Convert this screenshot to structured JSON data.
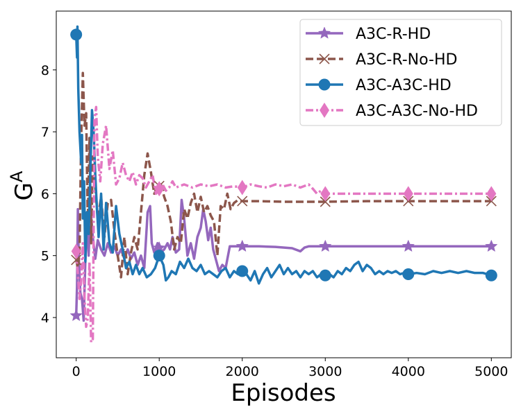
{
  "chart_data": {
    "type": "line",
    "title": "",
    "xlabel": "Episodes",
    "ylabel_base": "G",
    "ylabel_sup": "A",
    "xlim": [
      -240,
      5240
    ],
    "ylim": [
      3.35,
      8.95
    ],
    "xticks": [
      0,
      1000,
      2000,
      3000,
      4000,
      5000
    ],
    "yticks": [
      4,
      5,
      6,
      7,
      8
    ],
    "grid": false,
    "legend_position": "top-right",
    "series": [
      {
        "name": "A3C-R-HD",
        "color": "#9467bd",
        "dash": "solid",
        "marker": "star",
        "marker_x": [
          0,
          1000,
          2000,
          3000,
          4000,
          5000
        ],
        "points": [
          [
            0,
            4.03
          ],
          [
            10,
            4.5
          ],
          [
            20,
            5.75
          ],
          [
            30,
            5.0
          ],
          [
            50,
            4.4
          ],
          [
            70,
            4.3
          ],
          [
            90,
            3.95
          ],
          [
            110,
            4.9
          ],
          [
            130,
            5.6
          ],
          [
            150,
            5.0
          ],
          [
            170,
            5.8
          ],
          [
            200,
            5.3
          ],
          [
            230,
            4.95
          ],
          [
            260,
            5.25
          ],
          [
            300,
            5.1
          ],
          [
            340,
            5.0
          ],
          [
            380,
            5.2
          ],
          [
            420,
            5.05
          ],
          [
            460,
            5.15
          ],
          [
            500,
            5.0
          ],
          [
            540,
            5.1
          ],
          [
            580,
            4.95
          ],
          [
            620,
            5.1
          ],
          [
            660,
            4.95
          ],
          [
            700,
            5.05
          ],
          [
            740,
            4.85
          ],
          [
            780,
            5.0
          ],
          [
            820,
            4.8
          ],
          [
            860,
            5.7
          ],
          [
            890,
            5.8
          ],
          [
            910,
            5.2
          ],
          [
            940,
            5.05
          ],
          [
            980,
            5.2
          ],
          [
            1020,
            5.05
          ],
          [
            1060,
            5.1
          ],
          [
            1100,
            5.2
          ],
          [
            1130,
            5.1
          ],
          [
            1160,
            5.3
          ],
          [
            1200,
            5.05
          ],
          [
            1240,
            5.1
          ],
          [
            1270,
            5.9
          ],
          [
            1300,
            5.6
          ],
          [
            1340,
            5.0
          ],
          [
            1380,
            5.2
          ],
          [
            1420,
            4.95
          ],
          [
            1460,
            5.3
          ],
          [
            1500,
            5.45
          ],
          [
            1530,
            5.75
          ],
          [
            1560,
            5.55
          ],
          [
            1590,
            5.25
          ],
          [
            1620,
            5.45
          ],
          [
            1650,
            5.1
          ],
          [
            1690,
            4.9
          ],
          [
            1720,
            4.75
          ],
          [
            1760,
            4.85
          ],
          [
            1800,
            4.8
          ],
          [
            1850,
            5.15
          ],
          [
            1900,
            5.15
          ],
          [
            2000,
            5.15
          ],
          [
            2200,
            5.15
          ],
          [
            2400,
            5.14
          ],
          [
            2600,
            5.12
          ],
          [
            2700,
            5.07
          ],
          [
            2750,
            5.13
          ],
          [
            2800,
            5.15
          ],
          [
            3000,
            5.15
          ],
          [
            3500,
            5.15
          ],
          [
            4000,
            5.15
          ],
          [
            4500,
            5.15
          ],
          [
            5000,
            5.15
          ]
        ]
      },
      {
        "name": "A3C-R-No-HD",
        "color": "#8c564b",
        "dash": "dashed",
        "marker": "x",
        "marker_x": [
          0,
          1000,
          2000,
          3000,
          4000,
          5000
        ],
        "points": [
          [
            0,
            4.93
          ],
          [
            20,
            4.8
          ],
          [
            40,
            5.05
          ],
          [
            60,
            6.9
          ],
          [
            80,
            7.95
          ],
          [
            100,
            7.1
          ],
          [
            120,
            7.3
          ],
          [
            140,
            5.5
          ],
          [
            160,
            6.9
          ],
          [
            180,
            5.2
          ],
          [
            200,
            6.6
          ],
          [
            230,
            6.1
          ],
          [
            260,
            5.6
          ],
          [
            300,
            5.95
          ],
          [
            340,
            5.3
          ],
          [
            380,
            5.85
          ],
          [
            420,
            5.9
          ],
          [
            460,
            5.4
          ],
          [
            500,
            5.0
          ],
          [
            540,
            4.65
          ],
          [
            580,
            5.3
          ],
          [
            620,
            4.7
          ],
          [
            660,
            5.05
          ],
          [
            700,
            5.3
          ],
          [
            740,
            5.1
          ],
          [
            780,
            5.7
          ],
          [
            820,
            6.3
          ],
          [
            860,
            6.65
          ],
          [
            900,
            6.35
          ],
          [
            940,
            6.0
          ],
          [
            980,
            6.1
          ],
          [
            1020,
            6.15
          ],
          [
            1060,
            5.95
          ],
          [
            1100,
            5.8
          ],
          [
            1140,
            5.55
          ],
          [
            1180,
            5.1
          ],
          [
            1220,
            5.3
          ],
          [
            1260,
            5.2
          ],
          [
            1300,
            5.75
          ],
          [
            1340,
            5.6
          ],
          [
            1380,
            5.85
          ],
          [
            1420,
            6.0
          ],
          [
            1460,
            5.7
          ],
          [
            1500,
            5.95
          ],
          [
            1540,
            5.7
          ],
          [
            1580,
            5.8
          ],
          [
            1620,
            5.65
          ],
          [
            1660,
            5.55
          ],
          [
            1700,
            5.0
          ],
          [
            1740,
            5.8
          ],
          [
            1780,
            5.75
          ],
          [
            1820,
            6.0
          ],
          [
            1860,
            5.75
          ],
          [
            1900,
            5.85
          ],
          [
            1950,
            5.9
          ],
          [
            2000,
            5.88
          ],
          [
            2200,
            5.88
          ],
          [
            2500,
            5.87
          ],
          [
            3000,
            5.87
          ],
          [
            3500,
            5.88
          ],
          [
            4000,
            5.88
          ],
          [
            4500,
            5.88
          ],
          [
            5000,
            5.88
          ]
        ]
      },
      {
        "name": "A3C-A3C-HD",
        "color": "#1f77b4",
        "dash": "solid",
        "marker": "circle",
        "marker_x": [
          0,
          1000,
          2000,
          3000,
          4000,
          5000
        ],
        "points": [
          [
            0,
            8.57
          ],
          [
            10,
            8.2
          ],
          [
            15,
            8.7
          ],
          [
            25,
            7.7
          ],
          [
            40,
            7.0
          ],
          [
            60,
            6.5
          ],
          [
            70,
            6.95
          ],
          [
            80,
            5.6
          ],
          [
            95,
            6.2
          ],
          [
            110,
            4.9
          ],
          [
            130,
            5.7
          ],
          [
            150,
            5.35
          ],
          [
            170,
            6.3
          ],
          [
            190,
            7.35
          ],
          [
            210,
            7.0
          ],
          [
            230,
            6.3
          ],
          [
            250,
            5.75
          ],
          [
            270,
            5.3
          ],
          [
            300,
            6.0
          ],
          [
            330,
            5.1
          ],
          [
            360,
            5.85
          ],
          [
            400,
            5.2
          ],
          [
            440,
            5.05
          ],
          [
            480,
            5.8
          ],
          [
            520,
            5.35
          ],
          [
            560,
            5.1
          ],
          [
            600,
            4.8
          ],
          [
            640,
            4.9
          ],
          [
            680,
            4.7
          ],
          [
            720,
            4.85
          ],
          [
            760,
            4.7
          ],
          [
            800,
            4.8
          ],
          [
            850,
            4.65
          ],
          [
            900,
            4.7
          ],
          [
            950,
            4.8
          ],
          [
            1000,
            5.0
          ],
          [
            1050,
            4.85
          ],
          [
            1080,
            4.6
          ],
          [
            1110,
            4.65
          ],
          [
            1150,
            4.75
          ],
          [
            1200,
            4.7
          ],
          [
            1250,
            4.9
          ],
          [
            1300,
            4.8
          ],
          [
            1350,
            4.95
          ],
          [
            1400,
            4.8
          ],
          [
            1450,
            4.75
          ],
          [
            1500,
            4.85
          ],
          [
            1550,
            4.7
          ],
          [
            1600,
            4.75
          ],
          [
            1650,
            4.7
          ],
          [
            1700,
            4.65
          ],
          [
            1750,
            4.75
          ],
          [
            1800,
            4.8
          ],
          [
            1850,
            4.65
          ],
          [
            1900,
            4.75
          ],
          [
            1950,
            4.7
          ],
          [
            2000,
            4.75
          ],
          [
            2050,
            4.7
          ],
          [
            2100,
            4.6
          ],
          [
            2150,
            4.75
          ],
          [
            2200,
            4.55
          ],
          [
            2250,
            4.7
          ],
          [
            2300,
            4.8
          ],
          [
            2350,
            4.65
          ],
          [
            2400,
            4.75
          ],
          [
            2450,
            4.85
          ],
          [
            2500,
            4.7
          ],
          [
            2550,
            4.8
          ],
          [
            2600,
            4.7
          ],
          [
            2650,
            4.75
          ],
          [
            2700,
            4.65
          ],
          [
            2750,
            4.75
          ],
          [
            2800,
            4.7
          ],
          [
            2850,
            4.75
          ],
          [
            2900,
            4.65
          ],
          [
            2950,
            4.7
          ],
          [
            3000,
            4.68
          ],
          [
            3050,
            4.7
          ],
          [
            3100,
            4.65
          ],
          [
            3150,
            4.75
          ],
          [
            3200,
            4.7
          ],
          [
            3250,
            4.8
          ],
          [
            3300,
            4.75
          ],
          [
            3350,
            4.85
          ],
          [
            3400,
            4.9
          ],
          [
            3450,
            4.75
          ],
          [
            3500,
            4.85
          ],
          [
            3550,
            4.8
          ],
          [
            3600,
            4.7
          ],
          [
            3650,
            4.75
          ],
          [
            3700,
            4.7
          ],
          [
            3750,
            4.75
          ],
          [
            3800,
            4.72
          ],
          [
            3850,
            4.75
          ],
          [
            3900,
            4.7
          ],
          [
            3950,
            4.72
          ],
          [
            4000,
            4.7
          ],
          [
            4100,
            4.72
          ],
          [
            4200,
            4.7
          ],
          [
            4300,
            4.75
          ],
          [
            4400,
            4.72
          ],
          [
            4500,
            4.75
          ],
          [
            4600,
            4.72
          ],
          [
            4700,
            4.75
          ],
          [
            4800,
            4.72
          ],
          [
            4900,
            4.72
          ],
          [
            5000,
            4.68
          ]
        ]
      },
      {
        "name": "A3C-A3C-No-HD",
        "color": "#e377c2",
        "dash": "dashdot",
        "marker": "diamond",
        "marker_x": [
          0,
          1000,
          2000,
          3000,
          4000,
          5000
        ],
        "points": [
          [
            0,
            5.07
          ],
          [
            20,
            4.7
          ],
          [
            40,
            4.3
          ],
          [
            60,
            4.6
          ],
          [
            80,
            5.2
          ],
          [
            100,
            4.3
          ],
          [
            120,
            3.85
          ],
          [
            140,
            4.0
          ],
          [
            160,
            4.9
          ],
          [
            180,
            3.6
          ],
          [
            200,
            3.65
          ],
          [
            220,
            7.2
          ],
          [
            240,
            7.4
          ],
          [
            260,
            6.6
          ],
          [
            290,
            6.2
          ],
          [
            320,
            6.8
          ],
          [
            360,
            7.1
          ],
          [
            400,
            6.4
          ],
          [
            440,
            6.7
          ],
          [
            480,
            6.15
          ],
          [
            520,
            6.25
          ],
          [
            560,
            6.5
          ],
          [
            600,
            6.3
          ],
          [
            640,
            6.2
          ],
          [
            680,
            6.35
          ],
          [
            720,
            6.15
          ],
          [
            760,
            6.3
          ],
          [
            800,
            6.25
          ],
          [
            840,
            6.1
          ],
          [
            880,
            6.2
          ],
          [
            920,
            6.3
          ],
          [
            960,
            6.0
          ],
          [
            1000,
            6.08
          ],
          [
            1040,
            6.15
          ],
          [
            1080,
            6.05
          ],
          [
            1120,
            6.1
          ],
          [
            1160,
            6.2
          ],
          [
            1200,
            6.1
          ],
          [
            1300,
            6.15
          ],
          [
            1400,
            6.1
          ],
          [
            1500,
            6.15
          ],
          [
            1600,
            6.12
          ],
          [
            1700,
            6.15
          ],
          [
            1800,
            6.1
          ],
          [
            1900,
            6.12
          ],
          [
            2000,
            6.1
          ],
          [
            2100,
            6.15
          ],
          [
            2200,
            6.12
          ],
          [
            2300,
            6.1
          ],
          [
            2400,
            6.15
          ],
          [
            2500,
            6.12
          ],
          [
            2600,
            6.15
          ],
          [
            2700,
            6.1
          ],
          [
            2800,
            6.15
          ],
          [
            2850,
            6.08
          ],
          [
            2900,
            6.0
          ],
          [
            2950,
            6.05
          ],
          [
            3000,
            6.0
          ],
          [
            3500,
            6.0
          ],
          [
            4000,
            6.0
          ],
          [
            4500,
            6.0
          ],
          [
            5000,
            6.0
          ]
        ]
      }
    ]
  }
}
